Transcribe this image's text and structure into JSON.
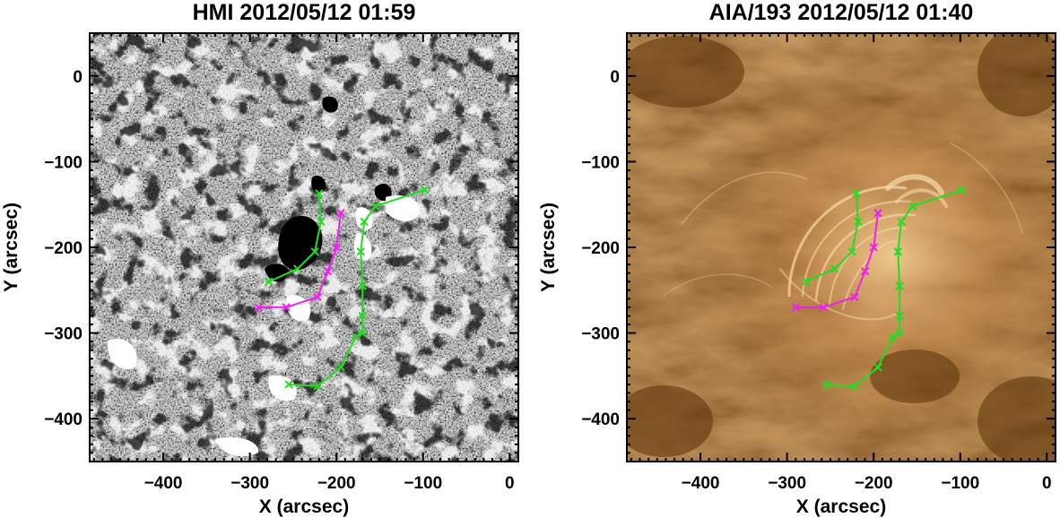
{
  "panels": [
    {
      "id": "hmi",
      "title": "HMI 2012/05/12 01:59",
      "xlabel": "X (arcsec)",
      "ylabel": "Y (arcsec)",
      "image": "grayscale magnetogram (black/white polarity patches on grey)",
      "colors": {
        "background": "#8e8e8e",
        "positive": "#ffffff",
        "negative": "#000000"
      }
    },
    {
      "id": "aia",
      "title": "AIA/193 2012/05/12 01:40",
      "xlabel": "X (arcsec)",
      "ylabel": "Y (arcsec)",
      "image": "brown-toned EUV coronal image with bright loops",
      "colors": {
        "dark": "#5a3208",
        "mid": "#a9713a",
        "bright": "#f5d6a2"
      }
    }
  ],
  "chart_data": {
    "type": "line",
    "xlim": [
      -485,
      10
    ],
    "ylim": [
      -450,
      50
    ],
    "x_ticks": [
      -400,
      -300,
      -200,
      -100,
      0
    ],
    "y_ticks": [
      0,
      -100,
      -200,
      -300,
      -400
    ],
    "x_tick_labels": [
      "−400",
      "−300",
      "−200",
      "−100",
      "0"
    ],
    "y_tick_labels": [
      "0",
      "−100",
      "−200",
      "−300",
      "−400"
    ],
    "series": [
      {
        "color": "#22dd22",
        "marker": "x",
        "x": [
          -220,
          -218,
          -225,
          -245,
          -278
        ],
        "y": [
          -137,
          -170,
          -205,
          -225,
          -240
        ]
      },
      {
        "color": "#22dd22",
        "marker": "x",
        "x": [
          -98,
          -155,
          -168,
          -172,
          -170,
          -170,
          -170,
          -178,
          -195,
          -222,
          -255
        ],
        "y": [
          -133,
          -152,
          -170,
          -205,
          -245,
          -280,
          -300,
          -305,
          -340,
          -362,
          -360
        ]
      },
      {
        "color": "#ee22ee",
        "marker": "x",
        "x": [
          -195,
          -200,
          -210,
          -222,
          -258,
          -290
        ],
        "y": [
          -160,
          -200,
          -228,
          -258,
          -270,
          -270
        ]
      }
    ]
  }
}
